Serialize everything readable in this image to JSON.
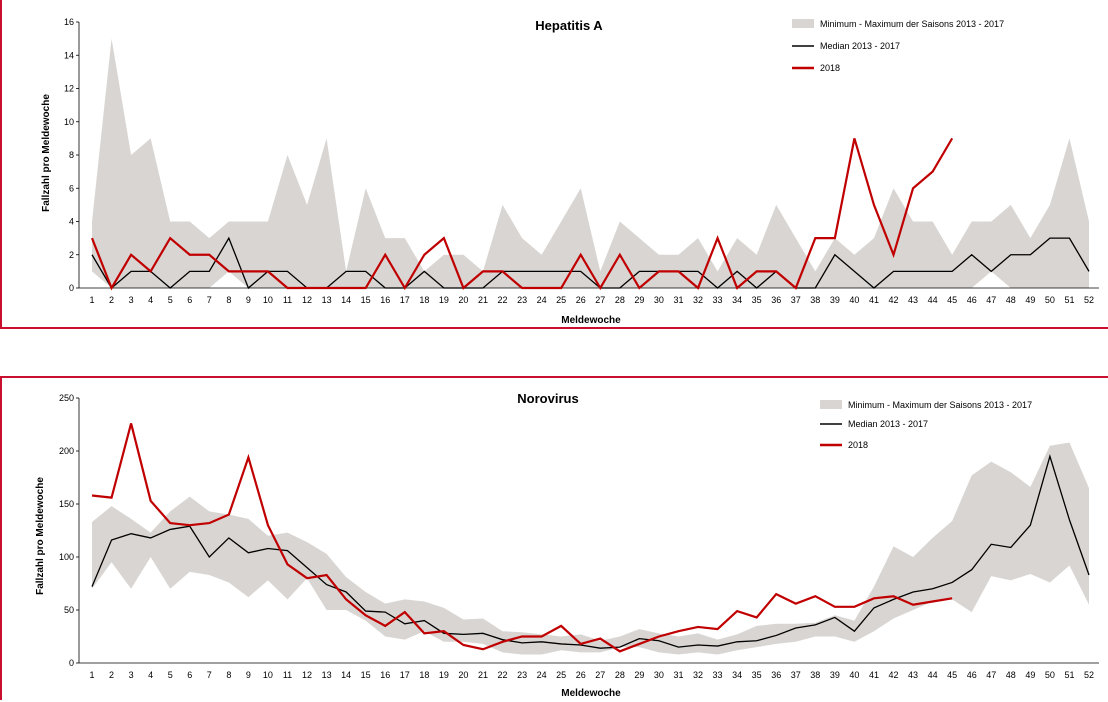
{
  "chart_data": [
    {
      "type": "line",
      "title": "Hepatitis A",
      "xlabel": "Meldewoche",
      "ylabel": "Fallzahl pro Meldewoche",
      "ylim": [
        0,
        16
      ],
      "yticks": [
        0,
        2,
        4,
        6,
        8,
        10,
        12,
        14,
        16
      ],
      "categories": [
        "1",
        "2",
        "3",
        "4",
        "5",
        "6",
        "7",
        "8",
        "9",
        "10",
        "11",
        "12",
        "13",
        "14",
        "15",
        "16",
        "17",
        "18",
        "19",
        "20",
        "21",
        "22",
        "23",
        "24",
        "25",
        "26",
        "27",
        "28",
        "29",
        "30",
        "31",
        "32",
        "33",
        "34",
        "35",
        "36",
        "37",
        "38",
        "39",
        "40",
        "41",
        "42",
        "43",
        "44",
        "45",
        "46",
        "47",
        "48",
        "49",
        "50",
        "51",
        "52"
      ],
      "band": {
        "name": "Minimum - Maximum der Saisons 2013 - 2017",
        "color": "#d9d5d2",
        "min": [
          1,
          0,
          0,
          0,
          0,
          0,
          0,
          1,
          0,
          0,
          0,
          0,
          0,
          0,
          0,
          0,
          0,
          0,
          0,
          0,
          0,
          0,
          0,
          0,
          0,
          0,
          0,
          0,
          0,
          0,
          0,
          0,
          0,
          0,
          0,
          0,
          0,
          0,
          0,
          0,
          0,
          0,
          0,
          0,
          0,
          0,
          1,
          0,
          0,
          0,
          0,
          0
        ],
        "max": [
          4,
          15,
          8,
          9,
          4,
          4,
          3,
          4,
          4,
          4,
          8,
          5,
          9,
          1,
          6,
          3,
          3,
          1,
          2,
          2,
          1,
          5,
          3,
          2,
          4,
          6,
          1,
          4,
          3,
          2,
          2,
          3,
          1,
          3,
          2,
          5,
          3,
          1,
          3,
          2,
          3,
          6,
          4,
          4,
          2,
          4,
          4,
          5,
          3,
          5,
          9,
          4
        ]
      },
      "series": [
        {
          "name": "Median 2013 - 2017",
          "color": "#000000",
          "values": [
            2,
            0,
            1,
            1,
            0,
            1,
            1,
            3,
            0,
            1,
            1,
            0,
            0,
            1,
            1,
            0,
            0,
            1,
            0,
            0,
            0,
            1,
            1,
            1,
            1,
            1,
            0,
            0,
            1,
            1,
            1,
            1,
            0,
            1,
            0,
            1,
            0,
            0,
            2,
            1,
            0,
            1,
            1,
            1,
            1,
            2,
            1,
            2,
            2,
            3,
            3,
            1
          ]
        },
        {
          "name": "2018",
          "color": "#c00000",
          "values": [
            3,
            0,
            2,
            1,
            3,
            2,
            2,
            1,
            1,
            1,
            0,
            0,
            0,
            0,
            0,
            2,
            0,
            2,
            3,
            0,
            1,
            1,
            0,
            0,
            0,
            2,
            0,
            2,
            0,
            1,
            1,
            0,
            3,
            0,
            1,
            1,
            0,
            3,
            3,
            9,
            5,
            2,
            6,
            7,
            9,
            null,
            null,
            null,
            null,
            null,
            null,
            null
          ]
        }
      ],
      "legend_position": "top-right",
      "grid": false
    },
    {
      "type": "line",
      "title": "Norovirus",
      "xlabel": "Meldewoche",
      "ylabel": "Fallzahl pro Meldewoche",
      "ylim": [
        0,
        250
      ],
      "yticks": [
        0,
        50,
        100,
        150,
        200,
        250
      ],
      "categories": [
        "1",
        "2",
        "3",
        "4",
        "5",
        "6",
        "7",
        "8",
        "9",
        "10",
        "11",
        "12",
        "13",
        "14",
        "15",
        "16",
        "17",
        "18",
        "19",
        "20",
        "21",
        "22",
        "23",
        "24",
        "25",
        "26",
        "27",
        "28",
        "29",
        "30",
        "31",
        "32",
        "33",
        "34",
        "35",
        "36",
        "37",
        "38",
        "39",
        "40",
        "41",
        "42",
        "43",
        "44",
        "45",
        "46",
        "47",
        "48",
        "49",
        "50",
        "51",
        "52"
      ],
      "band": {
        "name": "Minimum - Maximum der Saisons 2013 - 2017",
        "color": "#d9d5d2",
        "min": [
          70,
          95,
          70,
          100,
          70,
          86,
          83,
          76,
          62,
          78,
          60,
          80,
          50,
          50,
          40,
          25,
          22,
          30,
          20,
          20,
          18,
          10,
          8,
          8,
          12,
          10,
          10,
          15,
          15,
          10,
          8,
          10,
          8,
          12,
          15,
          18,
          20,
          25,
          25,
          20,
          30,
          42,
          50,
          58,
          60,
          48,
          82,
          78,
          84,
          76,
          92,
          55
        ],
        "max": [
          133,
          148,
          136,
          123,
          143,
          157,
          143,
          140,
          136,
          120,
          123,
          114,
          103,
          81,
          67,
          56,
          60,
          58,
          52,
          41,
          42,
          30,
          29,
          27,
          25,
          27,
          21,
          25,
          32,
          28,
          25,
          28,
          22,
          27,
          35,
          37,
          37,
          38,
          45,
          40,
          72,
          110,
          100,
          118,
          134,
          177,
          190,
          180,
          166,
          205,
          208,
          165
        ]
      },
      "series": [
        {
          "name": "Median 2013 - 2017",
          "color": "#000000",
          "values": [
            72,
            116,
            122,
            118,
            126,
            129,
            100,
            118,
            104,
            108,
            106,
            90,
            74,
            67,
            49,
            48,
            37,
            40,
            28,
            27,
            28,
            22,
            19,
            20,
            18,
            17,
            14,
            15,
            23,
            21,
            15,
            17,
            16,
            20,
            21,
            26,
            33,
            36,
            43,
            30,
            52,
            60,
            67,
            70,
            76,
            88,
            112,
            109,
            130,
            195,
            135,
            83
          ]
        },
        {
          "name": "2018",
          "color": "#c00000",
          "values": [
            158,
            156,
            226,
            153,
            132,
            130,
            132,
            140,
            194,
            130,
            93,
            80,
            83,
            60,
            45,
            35,
            48,
            28,
            30,
            17,
            13,
            20,
            25,
            25,
            35,
            18,
            23,
            11,
            18,
            25,
            30,
            34,
            32,
            49,
            43,
            65,
            56,
            63,
            53,
            53,
            61,
            63,
            55,
            58,
            61,
            null,
            null,
            null,
            null,
            null,
            null,
            null
          ]
        }
      ],
      "legend_position": "top-right",
      "grid": false
    }
  ]
}
